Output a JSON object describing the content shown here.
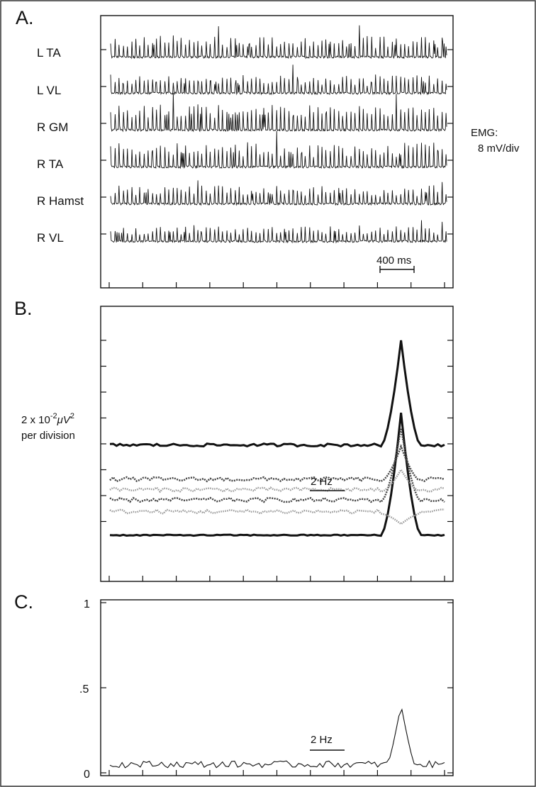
{
  "figure": {
    "panel_a": {
      "letter": "A.",
      "traces": [
        "L TA",
        "L VL",
        "R GM",
        "R TA",
        "R Hamst",
        "R VL"
      ],
      "emg_label_line1": "EMG:",
      "emg_label_line2": "8 mV/div",
      "time_scale_label": "400 ms"
    },
    "panel_b": {
      "letter": "B.",
      "ylabel_base": "2 x 10",
      "ylabel_exp": "-2",
      "ylabel_unit": "μV",
      "ylabel_exp2": "2",
      "ylabel_line2": "per division",
      "freq_scale_label": "2 Hz"
    },
    "panel_c": {
      "letter": "C.",
      "yticks": [
        "1",
        ".5",
        "0"
      ],
      "freq_scale_label": "2 Hz"
    }
  },
  "chart_data": [
    {
      "type": "line",
      "panel": "A",
      "description_units": "EMG voltage vs time",
      "series": [
        {
          "label": "L TA"
        },
        {
          "label": "L VL"
        },
        {
          "label": "R GM"
        },
        {
          "label": "R TA"
        },
        {
          "label": "R Hamst"
        },
        {
          "label": "R VL"
        }
      ],
      "scale_y": "8 mV/div",
      "scale_x": "400 ms"
    },
    {
      "type": "line",
      "panel": "B",
      "scale_y": "2 x 10^-2 μV^2 per division",
      "scale_x": "2 Hz",
      "peak_position_fraction": 0.87,
      "series": [
        {
          "style": "solid-thick",
          "baseline_div": 8.55,
          "peak_div": 3.8
        },
        {
          "style": "dotted-light",
          "baseline_div": 7.7,
          "peak_div": 8.1
        },
        {
          "style": "dotted-dark",
          "baseline_div": 7.25,
          "peak_div": 4.4
        },
        {
          "style": "dotted-light",
          "baseline_div": 6.85,
          "peak_div": 6.0
        },
        {
          "style": "dotted-dark",
          "baseline_div": 6.45,
          "peak_div": 5.1
        },
        {
          "style": "solid-thick",
          "baseline_div": 5.1,
          "peak_div": 1.0
        }
      ]
    },
    {
      "type": "line",
      "panel": "C",
      "ylim": [
        0,
        1
      ],
      "yticks": [
        0,
        0.5,
        1
      ],
      "scale_x": "2 Hz",
      "baseline": 0.05,
      "peak": 0.4,
      "peak_position_fraction": 0.87
    }
  ]
}
